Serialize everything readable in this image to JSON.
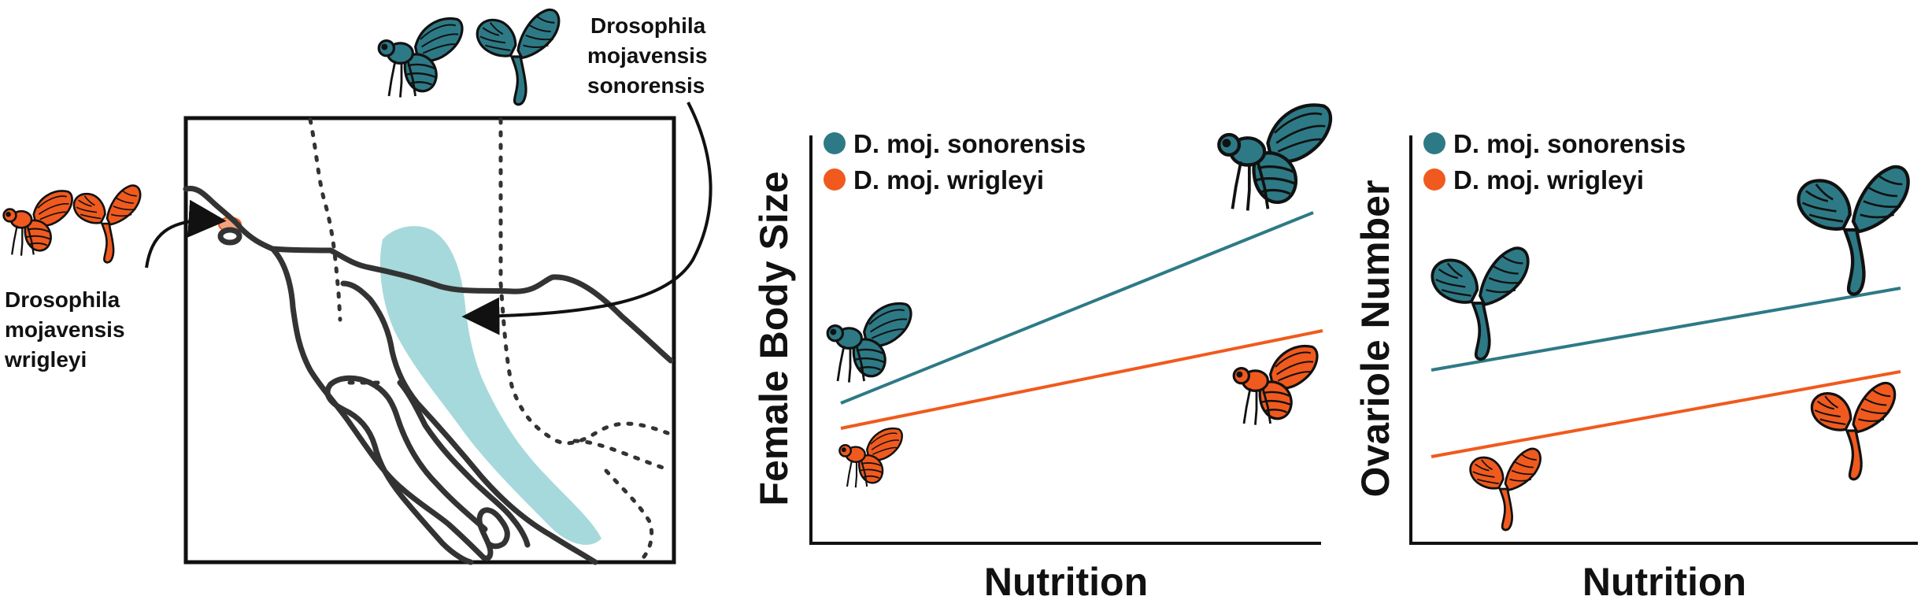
{
  "colors": {
    "sonorensis": "#2d7a86",
    "wrigleyi": "#f05a1e",
    "range_fill": "#a6d9dc",
    "ink": "#333333"
  },
  "map": {
    "label_sonorensis": [
      "Drosophila",
      "mojavensis",
      "sonorensis"
    ],
    "label_wrigleyi": [
      "Drosophila",
      "mojavensis",
      "wrigleyi"
    ],
    "icons": [
      "fly-icon",
      "ovary-icon"
    ]
  },
  "panels": [
    {
      "ylabel": "Female Body Size",
      "xlabel": "Nutrition",
      "legend": [
        {
          "name": "D. moj. sonorensis",
          "color": "#2d7a86"
        },
        {
          "name": "D. moj. wrigleyi",
          "color": "#f05a1e"
        }
      ],
      "icon": "fly-icon"
    },
    {
      "ylabel": "Ovariole Number",
      "xlabel": "Nutrition",
      "legend": [
        {
          "name": "D. moj. sonorensis",
          "color": "#2d7a86"
        },
        {
          "name": "D. moj. wrigleyi",
          "color": "#f05a1e"
        }
      ],
      "icon": "ovary-icon"
    }
  ]
}
